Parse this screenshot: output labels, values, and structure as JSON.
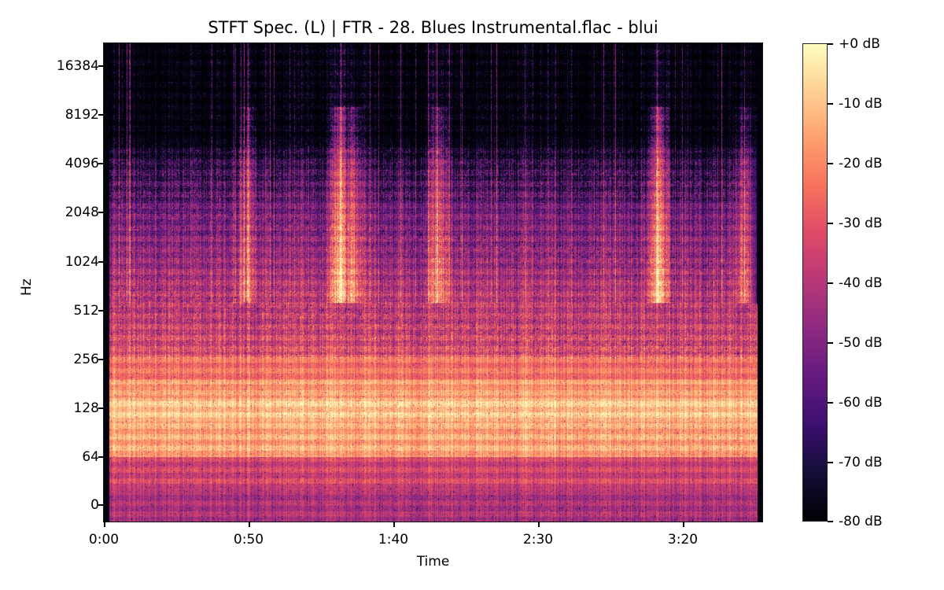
{
  "chart_data": {
    "type": "heatmap",
    "subtype": "spectrogram",
    "title": "STFT Spec. (L) | FTR - 28. Blues Instrumental.flac - blui",
    "xlabel": "Time",
    "ylabel": "Hz",
    "x_ticks": [
      {
        "label": "0:00",
        "seconds": 0
      },
      {
        "label": "0:50",
        "seconds": 50
      },
      {
        "label": "1:40",
        "seconds": 100
      },
      {
        "label": "2:30",
        "seconds": 150
      },
      {
        "label": "3:20",
        "seconds": 200
      }
    ],
    "xlim_seconds": [
      0,
      227
    ],
    "audio_active_seconds": [
      2,
      225
    ],
    "y_scale": "log2 (symlog)",
    "y_ticks": [
      "16384",
      "8192",
      "4096",
      "2048",
      "1024",
      "512",
      "256",
      "128",
      "64",
      "0"
    ],
    "colorbar": {
      "colormap": "magma",
      "label_format": "%+2.0f dB",
      "ticks": [
        "+0 dB",
        "-10 dB",
        "-20 dB",
        "-30 dB",
        "-40 dB",
        "-50 dB",
        "-60 dB",
        "-70 dB",
        "-80 dB"
      ],
      "range_db": [
        -80,
        0
      ]
    },
    "energy_profile_by_band": [
      {
        "band_hz": "0-32",
        "approx_db": -45
      },
      {
        "band_hz": "32-64",
        "approx_db": -35
      },
      {
        "band_hz": "64-128",
        "approx_db": -15
      },
      {
        "band_hz": "128-200",
        "approx_db": -10
      },
      {
        "band_hz": "200-256",
        "approx_db": -20
      },
      {
        "band_hz": "256-512",
        "approx_db": -30
      },
      {
        "band_hz": "512-1024",
        "approx_db": -38
      },
      {
        "band_hz": "1024-2048",
        "approx_db": -45
      },
      {
        "band_hz": "2048-4096",
        "approx_db": -55
      },
      {
        "band_hz": "4096-6000",
        "approx_db": -65
      },
      {
        "band_hz": "6000-22050",
        "approx_db": -80
      }
    ],
    "notable_events": [
      {
        "time": "0:49",
        "note": "transient reaching ~10 kHz"
      },
      {
        "time": "1:11",
        "note": "broadband burst reaching ~8 kHz"
      },
      {
        "time": "2:58",
        "note": "transient reaching ~9 kHz"
      },
      {
        "time": "3:45",
        "note": "audio ends"
      }
    ]
  }
}
